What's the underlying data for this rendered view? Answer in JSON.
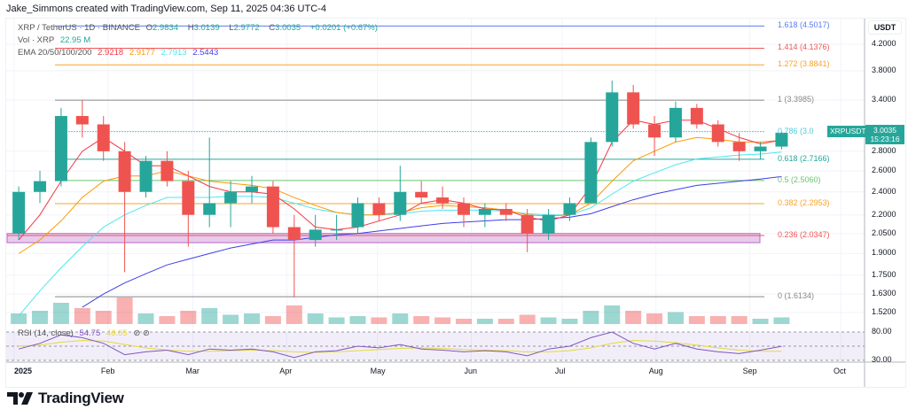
{
  "credit": "Jake_Simmons created with TradingView.com, Sep 11, 2025 04:36 UTC-4",
  "legend": {
    "symbol": "XRP / TetherUS · 1D · BINANCE",
    "open_label": "O",
    "open": "2.9834",
    "high_label": "H",
    "high": "3.0139",
    "low_label": "L",
    "low": "2.9772",
    "close_label": "C",
    "close": "3.0035",
    "change": "+0.0201 (+0.67%)",
    "vol_label": "Vol · XRP",
    "vol_value": "22.95 M",
    "ema_label": "EMA 20/50/100/200",
    "ema20": "2.9218",
    "ema50": "2.9177",
    "ema100": "2.7913",
    "ema200": "2.5443",
    "rsi_label": "RSI (14, close)",
    "rsi_value": "54.75",
    "rsi_ma_value": "46.05"
  },
  "price_axis": {
    "currency": "USDT",
    "ticks": [
      "4.2000",
      "3.8000",
      "3.4000",
      "2.8000",
      "2.6000",
      "2.4000",
      "2.2000",
      "2.0500",
      "1.9000",
      "1.7500",
      "1.6300",
      "1.5200"
    ],
    "rsi_ticks": [
      "80.00",
      "30.00"
    ]
  },
  "time_axis": [
    "2025",
    "Feb",
    "Mar",
    "Apr",
    "May",
    "Jun",
    "Jul",
    "Aug",
    "Sep",
    "Oct"
  ],
  "last_price": {
    "symbol": "XRPUSDT",
    "price": "3.0035",
    "countdown": "15:23:16"
  },
  "fib_levels": [
    {
      "label": "1.618 (4.5017)",
      "price": 4.5017,
      "color": "#5b7cf0"
    },
    {
      "label": "1.414 (4.1376)",
      "price": 4.1376,
      "color": "#f05555"
    },
    {
      "label": "1.272 (3.8841)",
      "price": 3.8841,
      "color": "#f7a32d"
    },
    {
      "label": "1 (3.3985)",
      "price": 3.3985,
      "color": "#888888"
    },
    {
      "label": "0.786 (3.0",
      "price": 3.0165,
      "color": "#4cc9dc"
    },
    {
      "label": "0.618 (2.7166)",
      "price": 2.7166,
      "color": "#26a69a"
    },
    {
      "label": "0.5 (2.5060)",
      "price": 2.506,
      "color": "#6cc46c"
    },
    {
      "label": "0.382 (2.2953)",
      "price": 2.2953,
      "color": "#f7a32d"
    },
    {
      "label": "0.236 (2.0347)",
      "price": 2.0347,
      "color": "#f05555"
    },
    {
      "label": "0 (1.6134)",
      "price": 1.6134,
      "color": "#888888"
    }
  ],
  "support_zone": {
    "top": 2.05,
    "bottom": 1.98,
    "color": "#e1bee7"
  },
  "colors": {
    "up": "#26a69a",
    "down": "#ef5350",
    "ema20": "#f23645",
    "ema50": "#ff9800",
    "ema100": "#4de6f0",
    "ema200": "#3f3fe8",
    "rsi": "#7e57c2",
    "rsi_ma": "#e6d83a",
    "brand": "#131722"
  },
  "brand": "TradingView",
  "chart_data": {
    "type": "candlestick",
    "interval_note": "weekly approximation of daily candles",
    "scale": "log",
    "ylim": [
      1.48,
      4.6
    ],
    "week_start": [
      "2024-12-30",
      "2025-01-06",
      "2025-01-13",
      "2025-01-20",
      "2025-01-27",
      "2025-02-03",
      "2025-02-10",
      "2025-02-17",
      "2025-02-24",
      "2025-03-03",
      "2025-03-10",
      "2025-03-17",
      "2025-03-24",
      "2025-03-31",
      "2025-04-07",
      "2025-04-14",
      "2025-04-21",
      "2025-04-28",
      "2025-05-05",
      "2025-05-12",
      "2025-05-19",
      "2025-05-26",
      "2025-06-02",
      "2025-06-09",
      "2025-06-16",
      "2025-06-23",
      "2025-06-30",
      "2025-07-07",
      "2025-07-14",
      "2025-07-21",
      "2025-07-28",
      "2025-08-04",
      "2025-08-11",
      "2025-08-18",
      "2025-08-25",
      "2025-09-01",
      "2025-09-08"
    ],
    "ohlc": [
      [
        2.05,
        2.45,
        2.0,
        2.4
      ],
      [
        2.4,
        2.6,
        2.3,
        2.5
      ],
      [
        2.5,
        3.3,
        2.45,
        3.2
      ],
      [
        3.2,
        3.4,
        2.95,
        3.1
      ],
      [
        3.1,
        3.2,
        2.7,
        2.8
      ],
      [
        2.8,
        2.9,
        1.77,
        2.4
      ],
      [
        2.4,
        2.75,
        2.35,
        2.7
      ],
      [
        2.7,
        2.8,
        2.45,
        2.5
      ],
      [
        2.5,
        2.6,
        1.95,
        2.2
      ],
      [
        2.2,
        2.95,
        2.1,
        2.3
      ],
      [
        2.3,
        2.5,
        2.1,
        2.4
      ],
      [
        2.4,
        2.55,
        2.3,
        2.45
      ],
      [
        2.45,
        2.5,
        2.05,
        2.1
      ],
      [
        2.1,
        2.2,
        1.61,
        2.0
      ],
      [
        2.0,
        2.2,
        1.95,
        2.08
      ],
      [
        2.08,
        2.2,
        2.0,
        2.08
      ],
      [
        2.1,
        2.35,
        2.05,
        2.3
      ],
      [
        2.3,
        2.35,
        2.15,
        2.2
      ],
      [
        2.2,
        2.65,
        2.15,
        2.4
      ],
      [
        2.4,
        2.5,
        2.3,
        2.35
      ],
      [
        2.35,
        2.45,
        2.25,
        2.3
      ],
      [
        2.3,
        2.35,
        2.1,
        2.2
      ],
      [
        2.2,
        2.3,
        2.1,
        2.25
      ],
      [
        2.25,
        2.3,
        2.15,
        2.2
      ],
      [
        2.2,
        2.25,
        1.91,
        2.05
      ],
      [
        2.05,
        2.25,
        2.0,
        2.2
      ],
      [
        2.2,
        2.35,
        2.15,
        2.3
      ],
      [
        2.3,
        2.95,
        2.3,
        2.9
      ],
      [
        2.9,
        3.66,
        2.85,
        3.5
      ],
      [
        3.5,
        3.6,
        3.05,
        3.1
      ],
      [
        3.1,
        3.2,
        2.75,
        2.95
      ],
      [
        2.95,
        3.38,
        2.9,
        3.3
      ],
      [
        3.3,
        3.35,
        3.05,
        3.1
      ],
      [
        3.1,
        3.15,
        2.85,
        2.9
      ],
      [
        2.9,
        3.0,
        2.7,
        2.8
      ],
      [
        2.8,
        2.9,
        2.72,
        2.85
      ],
      [
        2.85,
        3.0139,
        2.82,
        3.0035
      ]
    ],
    "volume_relative": [
      0.4,
      0.5,
      0.8,
      0.6,
      0.5,
      1.0,
      0.4,
      0.3,
      0.5,
      0.6,
      0.35,
      0.4,
      0.3,
      0.7,
      0.4,
      0.25,
      0.3,
      0.25,
      0.4,
      0.3,
      0.25,
      0.2,
      0.2,
      0.2,
      0.35,
      0.25,
      0.2,
      0.5,
      0.7,
      0.5,
      0.4,
      0.45,
      0.3,
      0.3,
      0.3,
      0.2,
      0.25
    ],
    "ema20": [
      2.0,
      2.2,
      2.5,
      2.8,
      2.95,
      2.8,
      2.65,
      2.65,
      2.55,
      2.45,
      2.4,
      2.4,
      2.38,
      2.25,
      2.1,
      2.08,
      2.1,
      2.15,
      2.2,
      2.3,
      2.33,
      2.3,
      2.25,
      2.24,
      2.18,
      2.15,
      2.2,
      2.45,
      2.9,
      3.15,
      3.1,
      3.15,
      3.15,
      3.05,
      2.95,
      2.88,
      2.9218
    ],
    "ema50": [
      1.9,
      2.0,
      2.15,
      2.35,
      2.5,
      2.55,
      2.55,
      2.6,
      2.55,
      2.5,
      2.48,
      2.46,
      2.43,
      2.35,
      2.28,
      2.22,
      2.2,
      2.2,
      2.22,
      2.26,
      2.28,
      2.27,
      2.26,
      2.24,
      2.2,
      2.19,
      2.2,
      2.3,
      2.5,
      2.7,
      2.8,
      2.9,
      2.95,
      2.93,
      2.9,
      2.9,
      2.9177
    ],
    "ema100": [
      1.5,
      1.65,
      1.8,
      1.95,
      2.1,
      2.2,
      2.28,
      2.35,
      2.35,
      2.35,
      2.36,
      2.36,
      2.35,
      2.3,
      2.25,
      2.22,
      2.2,
      2.2,
      2.21,
      2.23,
      2.24,
      2.24,
      2.24,
      2.23,
      2.21,
      2.2,
      2.2,
      2.26,
      2.38,
      2.5,
      2.58,
      2.66,
      2.72,
      2.74,
      2.76,
      2.77,
      2.7913
    ],
    "ema200": [
      null,
      null,
      null,
      1.55,
      1.63,
      1.7,
      1.76,
      1.82,
      1.86,
      1.9,
      1.94,
      1.97,
      2.0,
      2.0,
      2.02,
      2.04,
      2.05,
      2.07,
      2.09,
      2.11,
      2.13,
      2.14,
      2.15,
      2.16,
      2.16,
      2.17,
      2.18,
      2.21,
      2.27,
      2.33,
      2.38,
      2.42,
      2.46,
      2.48,
      2.5,
      2.52,
      2.5443
    ],
    "rsi": [
      50,
      60,
      75,
      70,
      60,
      40,
      45,
      48,
      40,
      50,
      48,
      50,
      45,
      35,
      45,
      47,
      55,
      52,
      58,
      50,
      48,
      45,
      47,
      45,
      38,
      50,
      55,
      70,
      80,
      60,
      50,
      60,
      50,
      45,
      42,
      48,
      54.75
    ],
    "rsi_ma": [
      55,
      57,
      62,
      65,
      64,
      58,
      52,
      48,
      46,
      46,
      47,
      48,
      47,
      45,
      44,
      45,
      47,
      49,
      51,
      52,
      51,
      49,
      48,
      47,
      45,
      45,
      47,
      52,
      60,
      65,
      64,
      61,
      57,
      52,
      48,
      46,
      46.05
    ],
    "rsi_range": [
      30,
      80
    ]
  }
}
